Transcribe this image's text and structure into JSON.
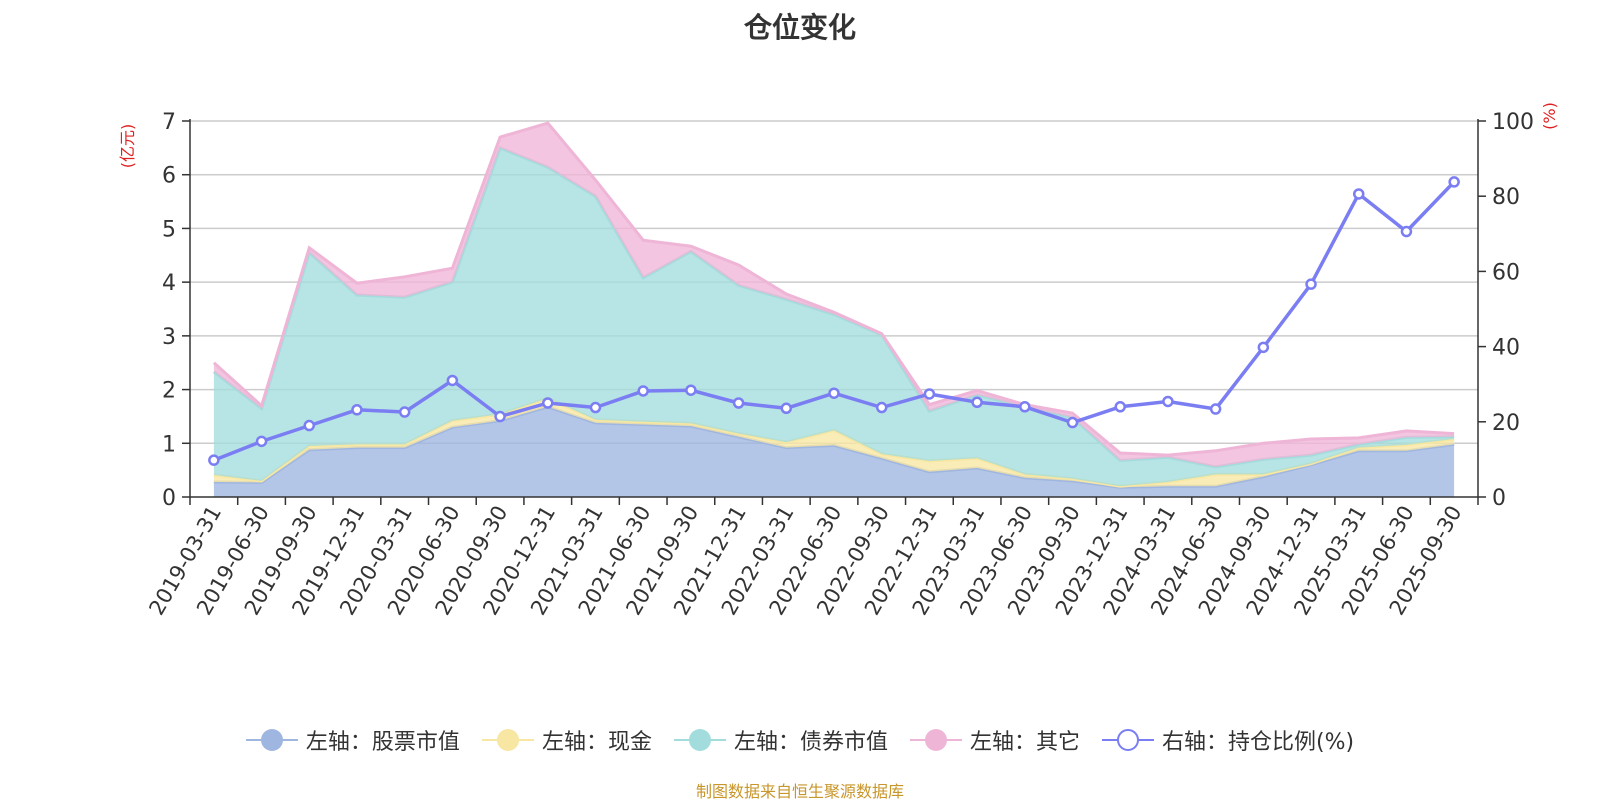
{
  "title": "仓位变化",
  "source": "制图数据来自恒生聚源数据库",
  "chart_data": {
    "type": "area",
    "title": "仓位变化",
    "x": [
      "2019-03-31",
      "2019-06-30",
      "2019-09-30",
      "2019-12-31",
      "2020-03-31",
      "2020-06-30",
      "2020-09-30",
      "2020-12-31",
      "2021-03-31",
      "2021-06-30",
      "2021-09-30",
      "2021-12-31",
      "2022-03-31",
      "2022-06-30",
      "2022-09-30",
      "2022-12-31",
      "2023-03-31",
      "2023-06-30",
      "2023-09-30",
      "2023-12-31",
      "2024-03-31",
      "2024-06-30",
      "2024-09-30",
      "2024-12-31",
      "2025-03-31",
      "2025-06-30",
      "2025-09-30"
    ],
    "left_axis": {
      "label": "(亿元)",
      "range": [
        0,
        7
      ],
      "ticks": [
        "0",
        "1",
        "2",
        "3",
        "4",
        "5",
        "6",
        "7"
      ]
    },
    "right_axis": {
      "label": "(%)",
      "range": [
        0,
        100
      ],
      "ticks": [
        "0",
        "20",
        "40",
        "60",
        "80",
        "100"
      ]
    },
    "stacked": true,
    "grid": true,
    "legend_position": "bottom",
    "series": [
      {
        "name": "左轴：股票市值",
        "axis": "left",
        "type": "area",
        "color": "#9fb6e0",
        "values": [
          0.28,
          0.27,
          0.88,
          0.92,
          0.92,
          1.3,
          1.42,
          1.68,
          1.38,
          1.35,
          1.32,
          1.12,
          0.92,
          0.96,
          0.72,
          0.47,
          0.54,
          0.36,
          0.3,
          0.18,
          0.2,
          0.2,
          0.38,
          0.6,
          0.86,
          0.86,
          0.98
        ]
      },
      {
        "name": "左轴：现金",
        "axis": "left",
        "type": "area",
        "color": "#f8e7a2",
        "values": [
          0.13,
          0.03,
          0.07,
          0.06,
          0.06,
          0.12,
          0.12,
          0.16,
          0.06,
          0.05,
          0.05,
          0.06,
          0.1,
          0.28,
          0.08,
          0.2,
          0.18,
          0.06,
          0.04,
          0.02,
          0.08,
          0.22,
          0.04,
          0.02,
          0.06,
          0.11,
          0.1
        ]
      },
      {
        "name": "左轴：债券市值",
        "axis": "left",
        "type": "area",
        "color": "#a3dcdc",
        "values": [
          1.92,
          1.35,
          3.6,
          2.78,
          2.74,
          2.58,
          4.96,
          4.3,
          4.16,
          2.68,
          3.2,
          2.76,
          2.66,
          2.16,
          2.22,
          0.93,
          1.18,
          1.26,
          1.14,
          0.48,
          0.46,
          0.14,
          0.28,
          0.16,
          0.06,
          0.14,
          0.04
        ]
      },
      {
        "name": "左轴：其它",
        "axis": "left",
        "type": "area",
        "color": "#efb5d7",
        "values": [
          0.17,
          0.05,
          0.09,
          0.22,
          0.38,
          0.26,
          0.2,
          0.82,
          0.3,
          0.7,
          0.1,
          0.38,
          0.1,
          0.04,
          0.02,
          0.12,
          0.08,
          0.04,
          0.08,
          0.14,
          0.04,
          0.3,
          0.3,
          0.3,
          0.12,
          0.12,
          0.06
        ]
      },
      {
        "name": "右轴：持仓比例(%)",
        "axis": "right",
        "type": "line",
        "color": "#7a7ef2",
        "values": [
          9.8,
          14.8,
          19.0,
          23.2,
          22.6,
          31.0,
          21.4,
          25.0,
          23.8,
          28.2,
          28.4,
          25.0,
          23.6,
          27.6,
          23.8,
          27.4,
          25.2,
          24.0,
          19.8,
          24.0,
          25.4,
          23.4,
          39.8,
          56.6,
          80.6,
          70.6,
          83.8
        ]
      }
    ]
  }
}
